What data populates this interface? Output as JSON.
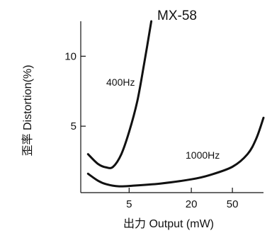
{
  "chart_data": {
    "type": "line",
    "title": "MX-58",
    "xlabel": "出力 Output (mW)",
    "ylabel": "歪率 Distortion(%)",
    "x_scale": "log",
    "x_ticks": [
      5,
      20,
      50
    ],
    "y_ticks": [
      5,
      10
    ],
    "xlim": [
      1.7,
      100
    ],
    "ylim": [
      0.25,
      12.5
    ],
    "grid": false,
    "series": [
      {
        "name": "400Hz",
        "points": [
          [
            2.0,
            3.0
          ],
          [
            2.5,
            2.3
          ],
          [
            3.0,
            2.05
          ],
          [
            3.5,
            2.1
          ],
          [
            4.2,
            3.0
          ],
          [
            5.0,
            4.6
          ],
          [
            6.0,
            6.8
          ],
          [
            7.0,
            9.5
          ],
          [
            8.2,
            12.5
          ]
        ]
      },
      {
        "name": "1000Hz",
        "points": [
          [
            2.0,
            1.6
          ],
          [
            2.5,
            1.1
          ],
          [
            3.0,
            0.85
          ],
          [
            4.0,
            0.7
          ],
          [
            5.5,
            0.75
          ],
          [
            10,
            0.9
          ],
          [
            20,
            1.2
          ],
          [
            30,
            1.5
          ],
          [
            50,
            2.1
          ],
          [
            70,
            3.0
          ],
          [
            85,
            4.1
          ],
          [
            100,
            5.6
          ]
        ]
      }
    ]
  }
}
